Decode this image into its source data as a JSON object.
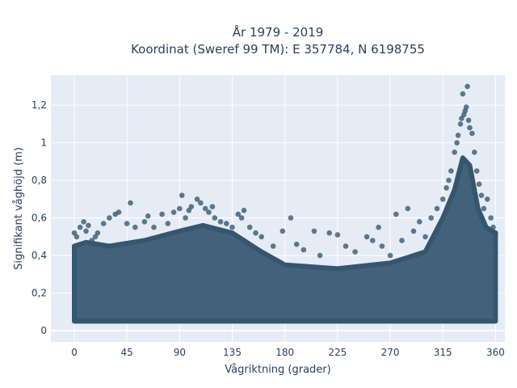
{
  "chart_data": {
    "type": "scatter",
    "title_lines": [
      "År 1979 - 2019",
      "Koordinat (Sweref 99 TM): E 357784, N 6198755"
    ],
    "xlabel": "Vågriktning (grader)",
    "ylabel": "Signifikant våghöjd (m)",
    "xlim": [
      -20,
      368
    ],
    "ylim": [
      -0.06,
      1.36
    ],
    "x_ticks": [
      0,
      45,
      90,
      135,
      180,
      225,
      270,
      315,
      360
    ],
    "x_tick_labels": [
      "0",
      "45",
      "90",
      "135",
      "180",
      "225",
      "270",
      "315",
      "360"
    ],
    "y_ticks": [
      0,
      0.2,
      0.4,
      0.6,
      0.8,
      1.0,
      1.2
    ],
    "y_tick_labels": [
      "0",
      "0,2",
      "0,4",
      "0,6",
      "0,8",
      "1",
      "1,2"
    ],
    "grid": true,
    "marker_color": "#34566e",
    "plot_background": "#e5ecf6",
    "series": [
      {
        "points": [
          [
            0,
            0.52
          ],
          [
            2,
            0.5
          ],
          [
            5,
            0.55
          ],
          [
            8,
            0.58
          ],
          [
            10,
            0.53
          ],
          [
            12,
            0.56
          ],
          [
            15,
            0.48
          ],
          [
            18,
            0.5
          ],
          [
            20,
            0.52
          ],
          [
            25,
            0.57
          ],
          [
            30,
            0.6
          ],
          [
            35,
            0.62
          ],
          [
            38,
            0.63
          ],
          [
            45,
            0.57
          ],
          [
            48,
            0.68
          ],
          [
            52,
            0.55
          ],
          [
            60,
            0.58
          ],
          [
            63,
            0.61
          ],
          [
            68,
            0.55
          ],
          [
            75,
            0.62
          ],
          [
            80,
            0.57
          ],
          [
            85,
            0.63
          ],
          [
            90,
            0.65
          ],
          [
            92,
            0.72
          ],
          [
            95,
            0.6
          ],
          [
            98,
            0.64
          ],
          [
            100,
            0.66
          ],
          [
            105,
            0.7
          ],
          [
            108,
            0.68
          ],
          [
            112,
            0.65
          ],
          [
            115,
            0.63
          ],
          [
            118,
            0.66
          ],
          [
            120,
            0.6
          ],
          [
            125,
            0.58
          ],
          [
            130,
            0.57
          ],
          [
            135,
            0.55
          ],
          [
            140,
            0.62
          ],
          [
            143,
            0.6
          ],
          [
            145,
            0.64
          ],
          [
            150,
            0.55
          ],
          [
            155,
            0.52
          ],
          [
            160,
            0.5
          ],
          [
            170,
            0.45
          ],
          [
            178,
            0.53
          ],
          [
            185,
            0.6
          ],
          [
            190,
            0.46
          ],
          [
            196,
            0.43
          ],
          [
            205,
            0.53
          ],
          [
            210,
            0.4
          ],
          [
            218,
            0.52
          ],
          [
            225,
            0.51
          ],
          [
            232,
            0.45
          ],
          [
            240,
            0.42
          ],
          [
            250,
            0.5
          ],
          [
            255,
            0.48
          ],
          [
            260,
            0.55
          ],
          [
            263,
            0.45
          ],
          [
            270,
            0.4
          ],
          [
            275,
            0.62
          ],
          [
            280,
            0.48
          ],
          [
            285,
            0.65
          ],
          [
            290,
            0.53
          ],
          [
            295,
            0.58
          ],
          [
            300,
            0.5
          ],
          [
            305,
            0.6
          ],
          [
            310,
            0.65
          ],
          [
            315,
            0.7
          ],
          [
            318,
            0.76
          ],
          [
            320,
            0.8
          ],
          [
            322,
            0.85
          ],
          [
            325,
            0.95
          ],
          [
            327,
            1.0
          ],
          [
            328,
            1.04
          ],
          [
            330,
            1.1
          ],
          [
            331,
            1.13
          ],
          [
            332,
            1.26
          ],
          [
            333,
            1.15
          ],
          [
            334,
            1.17
          ],
          [
            335,
            1.19
          ],
          [
            336,
            1.3
          ],
          [
            337,
            1.12
          ],
          [
            338,
            1.08
          ],
          [
            340,
            1.05
          ],
          [
            342,
            0.95
          ],
          [
            344,
            0.85
          ],
          [
            346,
            0.78
          ],
          [
            348,
            0.72
          ],
          [
            350,
            0.65
          ],
          [
            353,
            0.7
          ],
          [
            356,
            0.6
          ],
          [
            358,
            0.55
          ],
          [
            360,
            0.52
          ]
        ]
      }
    ]
  }
}
